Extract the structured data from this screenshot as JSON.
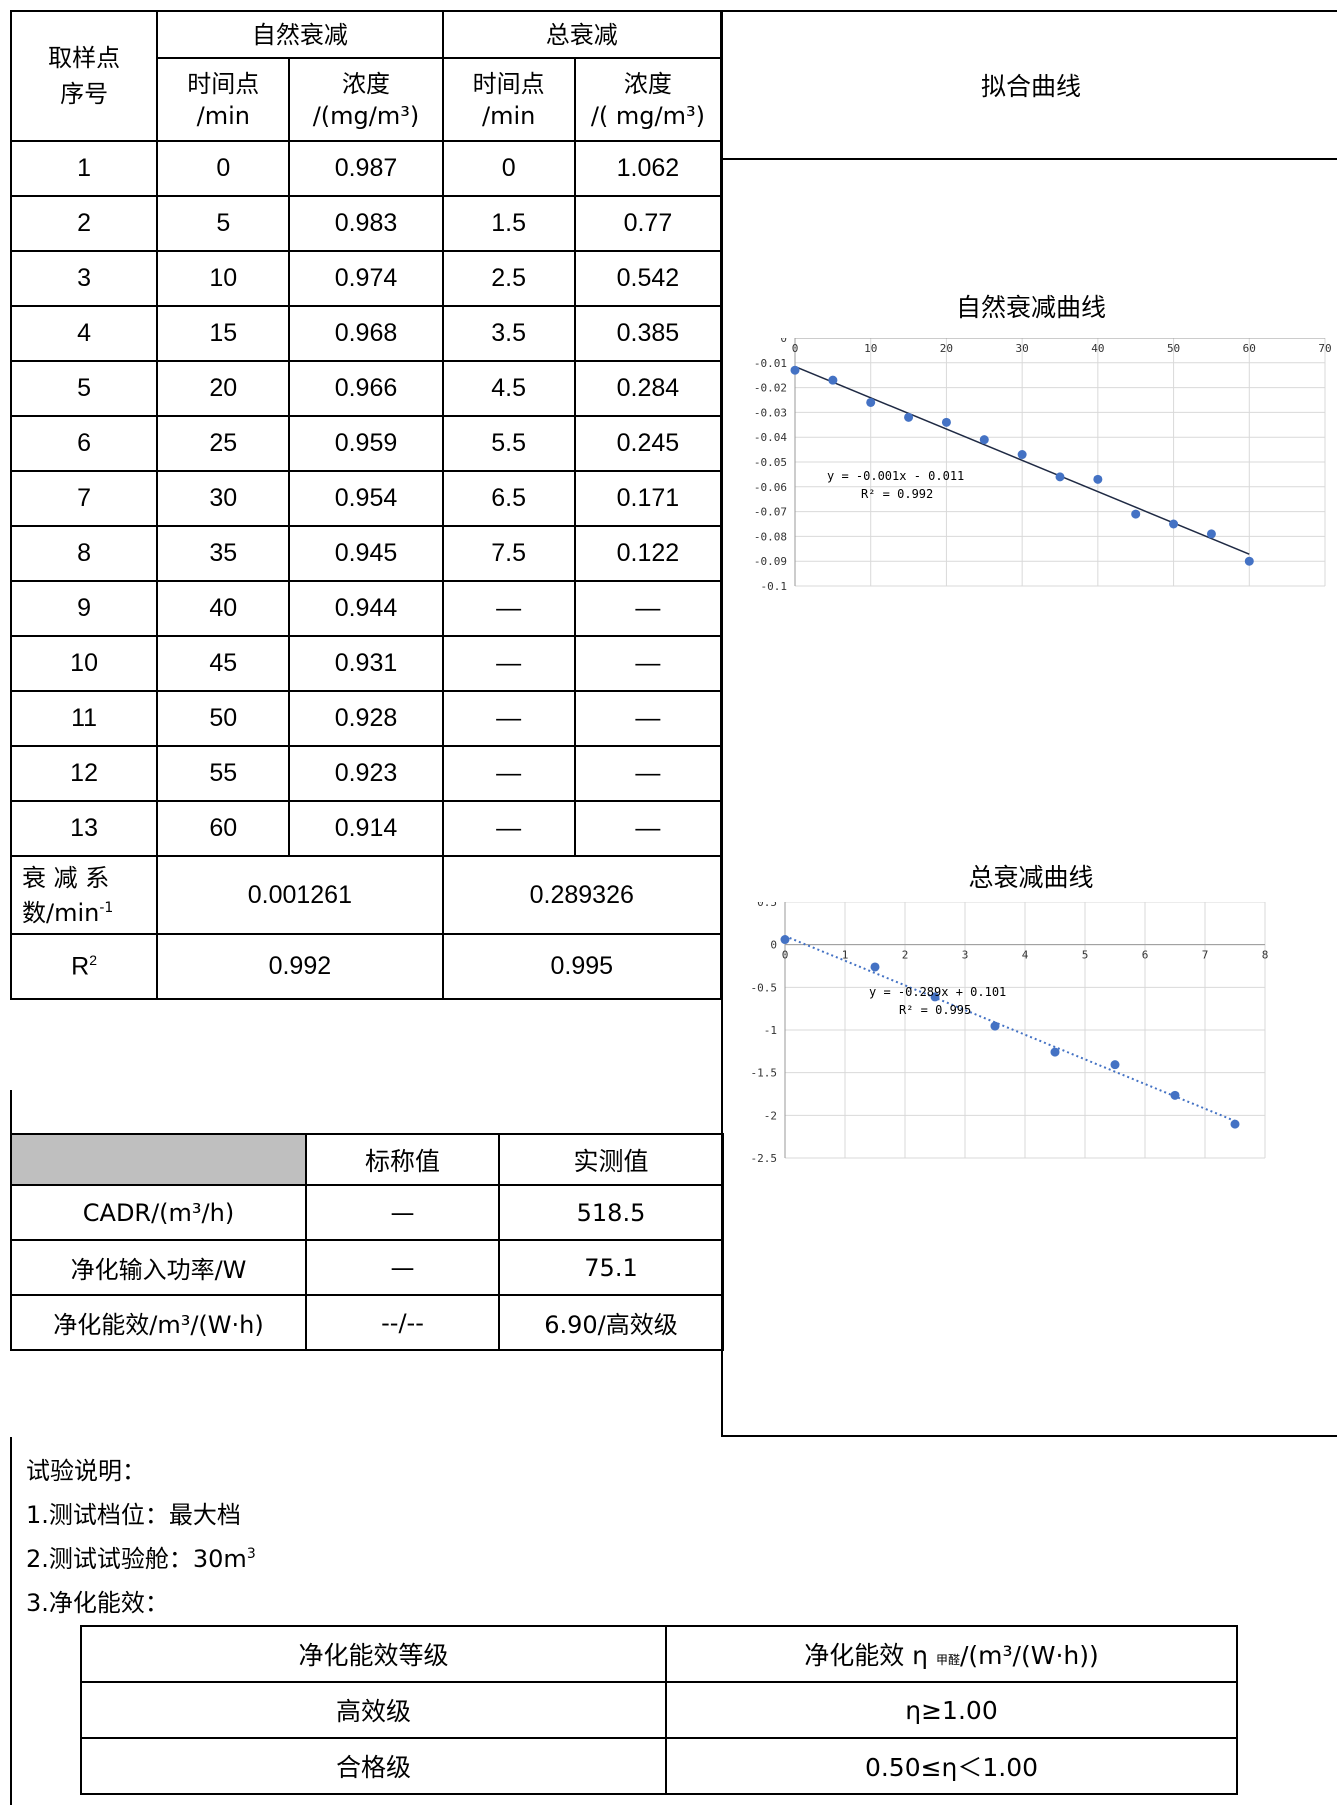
{
  "table": {
    "col_sample": "取样点\n序号",
    "group_natural": "自然衰减",
    "group_total": "总衰减",
    "fit_header": "拟合曲线",
    "time_head": "时间点\n/min",
    "conc_head_natural": "浓度\n/(mg/m³)",
    "conc_head_total": "浓度\n/( mg/m³)",
    "rows": [
      {
        "no": "1",
        "t1": "0",
        "c1": "0.987",
        "t2": "0",
        "c2": "1.062"
      },
      {
        "no": "2",
        "t1": "5",
        "c1": "0.983",
        "t2": "1.5",
        "c2": "0.77"
      },
      {
        "no": "3",
        "t1": "10",
        "c1": "0.974",
        "t2": "2.5",
        "c2": "0.542"
      },
      {
        "no": "4",
        "t1": "15",
        "c1": "0.968",
        "t2": "3.5",
        "c2": "0.385"
      },
      {
        "no": "5",
        "t1": "20",
        "c1": "0.966",
        "t2": "4.5",
        "c2": "0.284"
      },
      {
        "no": "6",
        "t1": "25",
        "c1": "0.959",
        "t2": "5.5",
        "c2": "0.245"
      },
      {
        "no": "7",
        "t1": "30",
        "c1": "0.954",
        "t2": "6.5",
        "c2": "0.171"
      },
      {
        "no": "8",
        "t1": "35",
        "c1": "0.945",
        "t2": "7.5",
        "c2": "0.122"
      },
      {
        "no": "9",
        "t1": "40",
        "c1": "0.944",
        "t2": "—",
        "c2": "—"
      },
      {
        "no": "10",
        "t1": "45",
        "c1": "0.931",
        "t2": "—",
        "c2": "—"
      },
      {
        "no": "11",
        "t1": "50",
        "c1": "0.928",
        "t2": "—",
        "c2": "—"
      },
      {
        "no": "12",
        "t1": "55",
        "c1": "0.923",
        "t2": "—",
        "c2": "—"
      },
      {
        "no": "13",
        "t1": "60",
        "c1": "0.914",
        "t2": "—",
        "c2": "—"
      }
    ],
    "decay_label": "衰 减 系\n数/min",
    "decay_sup": "-1",
    "decay_natural": "0.001261",
    "decay_total": "0.289326",
    "r2_label": "R",
    "r2_sup": "2",
    "r2_natural": "0.992",
    "r2_total": "0.995"
  },
  "perf": {
    "nominal_head": "标称值",
    "measured_head": "实测值",
    "rows": [
      {
        "label": "CADR/(m³/h)",
        "nominal": "—",
        "measured": "518.5"
      },
      {
        "label": "净化输入功率/W",
        "nominal": "—",
        "measured": "75.1"
      },
      {
        "label": "净化能效/m³/(W·h)",
        "nominal": "--/--",
        "measured": "6.90/高效级"
      }
    ]
  },
  "notes": {
    "title": "试验说明：",
    "line1": "1.测试档位：最大档",
    "line2": "2.测试试验舱：30m",
    "line2_sup": "3",
    "line3": "3.净化能效："
  },
  "grade": {
    "head_grade": "净化能效等级",
    "head_eff": "净化能效 η",
    "head_eff_sub": "甲醛",
    "head_eff_unit": "/(m³/(W·h))",
    "rows": [
      {
        "grade": "高效级",
        "eff": "η≥1.00"
      },
      {
        "grade": "合格级",
        "eff": "0.50≤η＜1.00"
      }
    ]
  },
  "chart_data": [
    {
      "type": "scatter",
      "title": "自然衰减曲线",
      "x": [
        0,
        5,
        10,
        15,
        20,
        25,
        30,
        35,
        40,
        45,
        50,
        55,
        60
      ],
      "y": [
        -0.013,
        -0.017,
        -0.026,
        -0.032,
        -0.034,
        -0.041,
        -0.047,
        -0.056,
        -0.057,
        -0.071,
        -0.075,
        -0.079,
        -0.09
      ],
      "xlim": [
        0,
        70
      ],
      "ylim": [
        -0.1,
        0
      ],
      "xticks": [
        "0",
        "10",
        "20",
        "30",
        "40",
        "50",
        "60",
        "70"
      ],
      "yticks": [
        "0",
        "-0.01",
        "-0.02",
        "-0.03",
        "-0.04",
        "-0.05",
        "-0.06",
        "-0.07",
        "-0.08",
        "-0.09",
        "-0.1"
      ],
      "trendline": {
        "slope": -0.001261,
        "intercept": -0.0115,
        "x_range": [
          0,
          60
        ],
        "style": "solid",
        "color": "#1f2a44"
      },
      "equation": "y = -0.001x - 0.011",
      "r2": "R² = 0.992",
      "grid": true,
      "marker_color": "#4472c4"
    },
    {
      "type": "scatter",
      "title": "总衰减曲线",
      "x": [
        0,
        1.5,
        2.5,
        3.5,
        4.5,
        5.5,
        6.5,
        7.5
      ],
      "y": [
        0.06,
        -0.261,
        -0.612,
        -0.954,
        -1.259,
        -1.406,
        -1.766,
        -2.103
      ],
      "xlim": [
        0,
        8
      ],
      "ylim": [
        -2.5,
        0.5
      ],
      "xticks": [
        "0",
        "1",
        "2",
        "3",
        "4",
        "5",
        "6",
        "7",
        "8"
      ],
      "yticks": [
        "0.5",
        "0",
        "-0.5",
        "-1",
        "-1.5",
        "-2",
        "-2.5"
      ],
      "trendline": {
        "slope": -0.289,
        "intercept": 0.101,
        "x_range": [
          0,
          7.5
        ],
        "style": "dotted",
        "color": "#4472c4"
      },
      "equation": "y = -0.289x + 0.101",
      "r2": "R² = 0.995",
      "grid": true,
      "marker_color": "#4472c4"
    }
  ]
}
